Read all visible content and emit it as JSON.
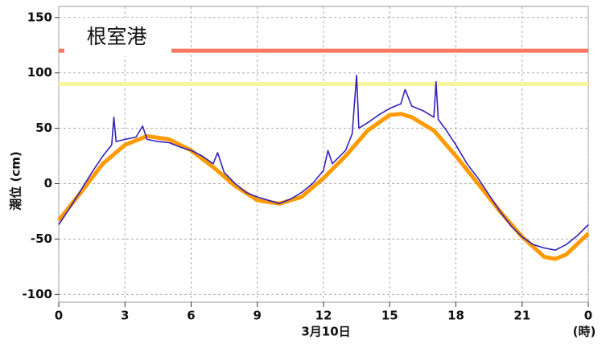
{
  "chart_data": {
    "type": "line",
    "title": "根室港",
    "ylabel": "潮位 (cm)",
    "xlabel": "3月10日",
    "xunit": "(時)",
    "xlim": [
      0,
      24
    ],
    "xticks": [
      0,
      3,
      6,
      9,
      12,
      15,
      18,
      21,
      {
        "value": 24,
        "label": "0"
      }
    ],
    "ylim": [
      -107,
      160
    ],
    "yticks": [
      -100,
      -50,
      0,
      50,
      100,
      150
    ],
    "grid": true,
    "reference_lines": [
      {
        "value": 120,
        "color": "#f87862"
      },
      {
        "value": 90,
        "color": "#f8f4a0"
      }
    ],
    "series": [
      {
        "color": "#ff9a00",
        "width": 5,
        "x": [
          0,
          1,
          2,
          3,
          4,
          5,
          6,
          7,
          8,
          9,
          10,
          11,
          12,
          13,
          14,
          15,
          15.5,
          16,
          17,
          18,
          19,
          20,
          21,
          22,
          22.5,
          23,
          24
        ],
        "values": [
          -33,
          -8,
          18,
          35,
          43,
          40,
          30,
          15,
          -2,
          -15,
          -18,
          -12,
          5,
          25,
          48,
          62,
          63,
          60,
          48,
          25,
          0,
          -25,
          -48,
          -66,
          -68,
          -64,
          -45
        ]
      },
      {
        "color": "#3322bb",
        "width": 1.6,
        "x": [
          0,
          0.5,
          1,
          1.5,
          2,
          2.4,
          2.5,
          2.6,
          3,
          3.5,
          3.8,
          4,
          4.5,
          5,
          5.5,
          6,
          6.5,
          7,
          7.2,
          7.5,
          8,
          8.5,
          9,
          9.5,
          10,
          10.5,
          11,
          11.5,
          12,
          12.2,
          12.4,
          13,
          13.3,
          13.5,
          13.6,
          14,
          14.5,
          15,
          15.5,
          15.7,
          16,
          16.5,
          17,
          17.1,
          17.2,
          17.5,
          18,
          18.5,
          19,
          19.5,
          20,
          20.5,
          21,
          21.5,
          22,
          22.5,
          23,
          23.5,
          24
        ],
        "values": [
          -37,
          -22,
          -6,
          10,
          25,
          35,
          60,
          38,
          40,
          42,
          52,
          40,
          38,
          37,
          33,
          30,
          25,
          18,
          28,
          10,
          0,
          -8,
          -12,
          -15,
          -18,
          -14,
          -8,
          0,
          12,
          30,
          18,
          30,
          45,
          98,
          50,
          55,
          62,
          68,
          72,
          85,
          70,
          66,
          60,
          92,
          58,
          50,
          35,
          18,
          5,
          -10,
          -25,
          -38,
          -48,
          -55,
          -58,
          -60,
          -55,
          -47,
          -37
        ]
      }
    ]
  }
}
